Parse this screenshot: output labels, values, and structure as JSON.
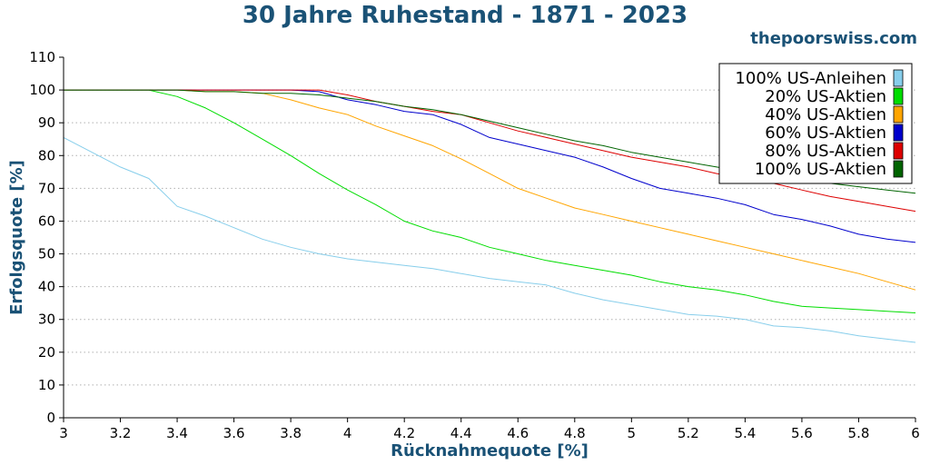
{
  "header": {
    "title": "30 Jahre Ruhestand - 1871 - 2023",
    "website": "thepoorswiss.com"
  },
  "chart_data": {
    "type": "line",
    "title": "30 Jahre Ruhestand - 1871 - 2023",
    "xlabel": "Rücknahmequote [%]",
    "ylabel": "Erfolgsquote [%]",
    "xlim": [
      3,
      6
    ],
    "ylim": [
      0,
      110
    ],
    "xticks": [
      "3",
      "3.2",
      "3.4",
      "3.6",
      "3.8",
      "4",
      "4.2",
      "4.4",
      "4.6",
      "4.8",
      "5",
      "5.2",
      "5.4",
      "5.6",
      "5.8",
      "6"
    ],
    "yticks": [
      "0",
      "10",
      "20",
      "30",
      "40",
      "50",
      "60",
      "70",
      "80",
      "90",
      "100",
      "110"
    ],
    "grid": "horizontal dotted",
    "legend_position": "top-right",
    "x": [
      3.0,
      3.1,
      3.2,
      3.3,
      3.4,
      3.5,
      3.6,
      3.7,
      3.8,
      3.9,
      4.0,
      4.1,
      4.2,
      4.3,
      4.4,
      4.5,
      4.6,
      4.7,
      4.8,
      4.9,
      5.0,
      5.1,
      5.2,
      5.3,
      5.4,
      5.5,
      5.6,
      5.7,
      5.8,
      5.9,
      6.0
    ],
    "series": [
      {
        "name": "100% US-Anleihen",
        "color": "#87ceeb",
        "values": [
          85.5,
          81,
          76.5,
          73,
          64.5,
          61.5,
          58,
          54.5,
          52,
          50,
          48.5,
          47.5,
          46.5,
          45.5,
          44,
          42.5,
          41.5,
          40.5,
          38,
          36,
          34.5,
          33,
          31.5,
          31,
          30,
          28,
          27.5,
          26.5,
          25,
          24,
          23
        ]
      },
      {
        "name": "20% US-Aktien",
        "color": "#00dd00",
        "values": [
          100,
          100,
          100,
          100,
          98,
          94.5,
          90,
          85,
          80,
          74.5,
          69.5,
          65,
          60,
          57,
          55,
          52,
          50,
          48,
          46.5,
          45,
          43.5,
          41.5,
          40,
          39,
          37.5,
          35.5,
          34,
          33.5,
          33,
          32.5,
          32
        ]
      },
      {
        "name": "40% US-Aktien",
        "color": "#ffa500",
        "values": [
          100,
          100,
          100,
          100,
          100,
          99.5,
          99.5,
          99,
          97,
          94.5,
          92.5,
          89,
          86,
          83,
          79,
          74.5,
          70,
          67,
          64,
          62,
          60,
          58,
          56,
          54,
          52,
          50,
          48,
          46,
          44,
          41.5,
          39
        ]
      },
      {
        "name": "60% US-Aktien",
        "color": "#0000cc",
        "values": [
          100,
          100,
          100,
          100,
          100,
          100,
          100,
          100,
          100,
          99.5,
          97,
          95.5,
          93.5,
          92.5,
          89.5,
          85.5,
          83.5,
          81.5,
          79.5,
          76.5,
          73,
          70,
          68.5,
          67,
          65,
          62,
          60.5,
          58.5,
          56,
          54.5,
          53.5
        ]
      },
      {
        "name": "80% US-Aktien",
        "color": "#dd0000",
        "values": [
          100,
          100,
          100,
          100,
          100,
          100,
          100,
          100,
          100,
          100,
          98.5,
          96.5,
          95,
          93.5,
          92.5,
          90,
          87.5,
          85.5,
          83.5,
          81.5,
          79.5,
          78,
          76.5,
          74.5,
          73,
          71.5,
          69.5,
          67.5,
          66,
          64.5,
          63
        ]
      },
      {
        "name": "100% US-Aktien",
        "color": "#006400",
        "values": [
          100,
          100,
          100,
          100,
          100,
          99.5,
          99.5,
          99,
          99,
          98.5,
          97.5,
          96.5,
          95,
          94,
          92.5,
          90.5,
          88.5,
          86.5,
          84.5,
          83,
          81,
          79.5,
          78,
          76.5,
          75,
          73.5,
          72.5,
          71.5,
          70.5,
          69.5,
          68.5
        ]
      }
    ]
  }
}
